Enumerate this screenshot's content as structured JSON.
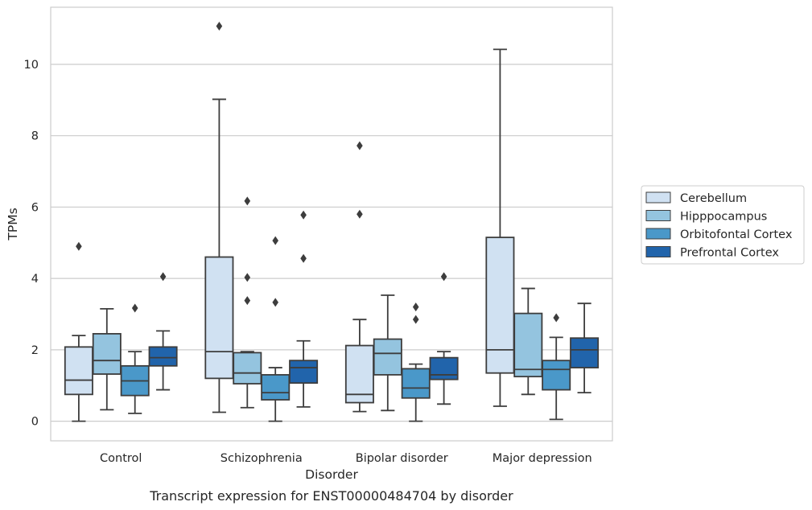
{
  "caption": "Transcript expression for ENST00000484704 by disorder",
  "chart_data": {
    "type": "box",
    "title": "",
    "xlabel": "Disorder",
    "ylabel": "TPMs",
    "ylim": [
      -0.55,
      11.6
    ],
    "yticks": [
      0,
      2,
      4,
      6,
      8,
      10
    ],
    "grid": "horizontal",
    "legend_position": "right",
    "categories": [
      "Control",
      "Schizophrenia",
      "Bipolar disorder",
      "Major depression"
    ],
    "series": [
      {
        "name": "Cerebellum",
        "color": "#d0e1f2",
        "boxes": [
          {
            "whisker_low": 0.0,
            "q1": 0.75,
            "median": 1.15,
            "q3": 2.08,
            "whisker_high": 2.4,
            "outliers": [
              4.9
            ]
          },
          {
            "whisker_low": 0.25,
            "q1": 1.2,
            "median": 1.95,
            "q3": 4.6,
            "whisker_high": 9.02,
            "outliers": [
              11.07
            ]
          },
          {
            "whisker_low": 0.27,
            "q1": 0.52,
            "median": 0.75,
            "q3": 2.12,
            "whisker_high": 2.85,
            "outliers": [
              5.8,
              7.72
            ]
          },
          {
            "whisker_low": 0.42,
            "q1": 1.35,
            "median": 2.0,
            "q3": 5.15,
            "whisker_high": 10.42,
            "outliers": []
          }
        ]
      },
      {
        "name": "Hipppocampus",
        "color": "#94c4df",
        "boxes": [
          {
            "whisker_low": 0.32,
            "q1": 1.32,
            "median": 1.7,
            "q3": 2.45,
            "whisker_high": 3.15,
            "outliers": []
          },
          {
            "whisker_low": 0.38,
            "q1": 1.05,
            "median": 1.35,
            "q3": 1.92,
            "whisker_high": 1.95,
            "outliers": [
              3.38,
              4.03,
              6.17
            ]
          },
          {
            "whisker_low": 0.3,
            "q1": 1.3,
            "median": 1.9,
            "q3": 2.3,
            "whisker_high": 3.53,
            "outliers": []
          },
          {
            "whisker_low": 0.75,
            "q1": 1.25,
            "median": 1.45,
            "q3": 3.02,
            "whisker_high": 3.72,
            "outliers": []
          }
        ]
      },
      {
        "name": "Orbitofontal Cortex",
        "color": "#4a98c9",
        "boxes": [
          {
            "whisker_low": 0.22,
            "q1": 0.72,
            "median": 1.13,
            "q3": 1.55,
            "whisker_high": 1.95,
            "outliers": [
              3.17
            ]
          },
          {
            "whisker_low": 0.0,
            "q1": 0.6,
            "median": 0.8,
            "q3": 1.3,
            "whisker_high": 1.5,
            "outliers": [
              3.33,
              5.06
            ]
          },
          {
            "whisker_low": 0.0,
            "q1": 0.65,
            "median": 0.93,
            "q3": 1.47,
            "whisker_high": 1.6,
            "outliers": [
              2.85,
              3.2
            ]
          },
          {
            "whisker_low": 0.05,
            "q1": 0.88,
            "median": 1.45,
            "q3": 1.7,
            "whisker_high": 2.35,
            "outliers": [
              2.9
            ]
          }
        ]
      },
      {
        "name": "Prefrontal Cortex",
        "color": "#2164ab",
        "boxes": [
          {
            "whisker_low": 0.88,
            "q1": 1.55,
            "median": 1.78,
            "q3": 2.08,
            "whisker_high": 2.53,
            "outliers": [
              4.05
            ]
          },
          {
            "whisker_low": 0.4,
            "q1": 1.07,
            "median": 1.5,
            "q3": 1.7,
            "whisker_high": 2.25,
            "outliers": [
              4.56,
              5.78
            ]
          },
          {
            "whisker_low": 0.48,
            "q1": 1.17,
            "median": 1.3,
            "q3": 1.78,
            "whisker_high": 1.95,
            "outliers": [
              4.05
            ]
          },
          {
            "whisker_low": 0.8,
            "q1": 1.5,
            "median": 2.0,
            "q3": 2.33,
            "whisker_high": 3.3,
            "outliers": []
          }
        ]
      }
    ]
  }
}
